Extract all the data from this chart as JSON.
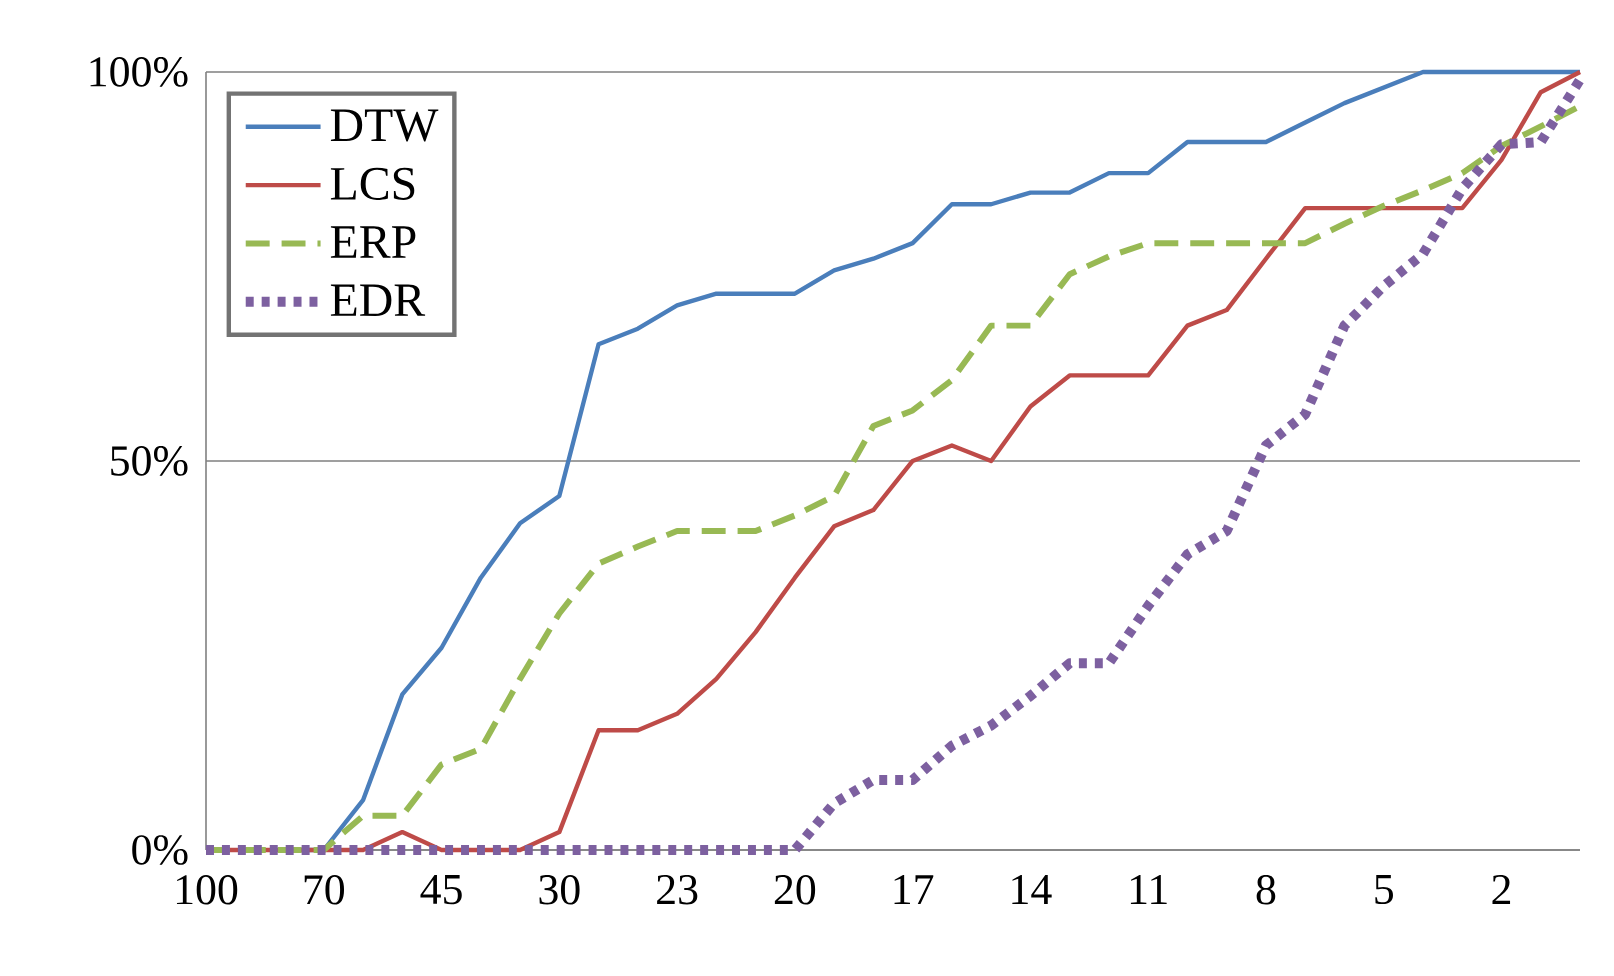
{
  "chart_data": {
    "type": "line",
    "categories": [
      "100",
      null,
      null,
      "70",
      null,
      null,
      "45",
      null,
      null,
      "30",
      null,
      null,
      "23",
      null,
      null,
      "20",
      null,
      null,
      "17",
      null,
      null,
      "14",
      null,
      null,
      "11",
      null,
      null,
      "8",
      null,
      null,
      "5",
      null,
      null,
      "2",
      null,
      null
    ],
    "series": [
      {
        "name": "DTW",
        "color": "#4a7ebb",
        "line_style": "solid",
        "values": [
          null,
          null,
          0,
          0,
          6.4,
          20,
          26,
          35,
          42,
          45.5,
          65,
          67,
          70,
          71.5,
          71.5,
          71.5,
          74.5,
          76,
          78,
          83,
          83,
          84.5,
          84.5,
          87,
          87,
          91,
          91,
          91,
          93.5,
          96,
          98,
          100,
          100,
          100,
          100,
          100
        ]
      },
      {
        "name": "LCS",
        "color": "#be4b48",
        "line_style": "solid",
        "values": [
          0,
          0,
          0,
          0,
          0,
          2.3,
          0,
          0,
          0,
          2.3,
          15.4,
          15.4,
          17.5,
          22,
          28,
          35,
          41.6,
          43.7,
          50,
          52,
          50,
          57,
          61,
          61,
          61,
          67.4,
          69.4,
          76,
          82.5,
          82.5,
          82.5,
          82.5,
          82.5,
          88.7,
          97.4,
          100
        ]
      },
      {
        "name": "ERP",
        "color": "#98b954",
        "line_style": "dashed",
        "values": [
          0,
          0,
          0,
          0,
          4.4,
          4.4,
          11,
          13,
          22,
          30.4,
          36.8,
          39,
          41,
          41,
          41,
          43,
          45.5,
          54.5,
          56.5,
          60.4,
          67.4,
          67.4,
          74,
          76.3,
          78,
          78,
          78,
          78,
          78,
          80.5,
          82.8,
          84.8,
          87,
          90.5,
          93,
          95.6
        ]
      },
      {
        "name": "EDR",
        "color": "#7d60a0",
        "line_style": "dotted",
        "values": [
          0,
          0,
          0,
          0,
          0,
          0,
          0,
          0,
          0,
          0,
          0,
          0,
          0,
          0,
          0,
          0,
          6,
          9,
          9,
          13.4,
          16,
          19.8,
          24,
          24,
          31.4,
          38,
          41,
          52,
          56,
          67.4,
          72.5,
          76.6,
          85,
          90.7,
          91,
          99
        ]
      }
    ],
    "ylim": [
      0,
      100
    ],
    "yticks": [
      {
        "value": 0,
        "label": "0%"
      },
      {
        "value": 50,
        "label": "50%"
      },
      {
        "value": 100,
        "label": "100%"
      }
    ],
    "grid": "y",
    "legend": "top left",
    "marker": "none"
  }
}
